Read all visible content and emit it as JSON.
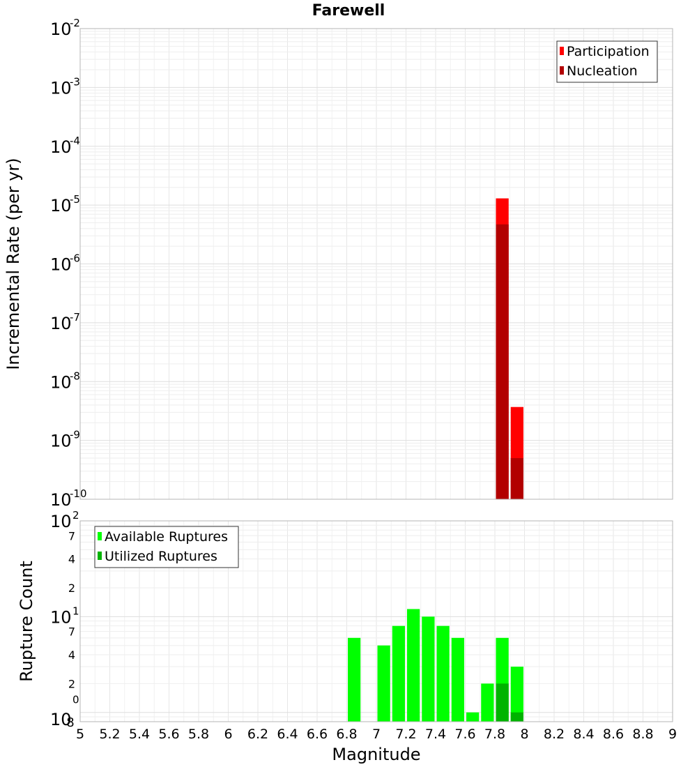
{
  "title": "Farewell",
  "chart_data": [
    {
      "type": "bar",
      "panel": "top",
      "ylabel": "Incremental Rate (per yr)",
      "y_scale": "log",
      "ylim": [
        1e-10,
        0.01
      ],
      "y_tick_exponents": [
        "-2",
        "-3",
        "-4",
        "-5",
        "-6",
        "-7",
        "-8",
        "-9",
        "-10"
      ],
      "y_tick_base": "10",
      "grid": true,
      "legend_position": "top-right",
      "series": [
        {
          "name": "Participation",
          "color": "#ff0000",
          "x": [
            7.85,
            7.95
          ],
          "values": [
            1.3e-05,
            3.7e-09
          ]
        },
        {
          "name": "Nucleation",
          "color": "#b20000",
          "x": [
            7.85,
            7.95
          ],
          "values": [
            4.7e-06,
            5e-10
          ]
        }
      ]
    },
    {
      "type": "bar",
      "panel": "bottom",
      "xlabel": "Magnitude",
      "ylabel": "Rupture Count",
      "y_scale": "log",
      "ylim": [
        0.8,
        100
      ],
      "grid": true,
      "legend_position": "top-left",
      "x_ticks": [
        "5",
        "5.2",
        "5.4",
        "5.6",
        "5.8",
        "6",
        "6.2",
        "6.4",
        "6.6",
        "6.8",
        "7",
        "7.2",
        "7.4",
        "7.6",
        "7.8",
        "8",
        "8.2",
        "8.4",
        "8.6",
        "8.8",
        "9"
      ],
      "xlim": [
        5,
        9
      ],
      "y_major_ticks": [
        {
          "value": 100,
          "base": "10",
          "exp": "2"
        },
        {
          "value": 10,
          "base": "10",
          "exp": "1"
        },
        {
          "value": 1,
          "base": "10",
          "exp": "0"
        }
      ],
      "y_minor_labels": [
        {
          "value": 70,
          "label": "7"
        },
        {
          "value": 40,
          "label": "4"
        },
        {
          "value": 20,
          "label": "2"
        },
        {
          "value": 7,
          "label": "7"
        },
        {
          "value": 4,
          "label": "4"
        },
        {
          "value": 2,
          "label": "2"
        },
        {
          "value": 0.8,
          "label": "8"
        }
      ],
      "series": [
        {
          "name": "Available Ruptures",
          "color": "#00ff00",
          "x": [
            6.85,
            7.05,
            7.15,
            7.25,
            7.35,
            7.45,
            7.55,
            7.65,
            7.75,
            7.85,
            7.95
          ],
          "values": [
            6,
            5,
            8,
            12,
            10,
            8,
            6,
            1,
            2,
            6,
            3
          ]
        },
        {
          "name": "Utilized Ruptures",
          "color": "#00b300",
          "x": [
            7.85,
            7.95
          ],
          "values": [
            2,
            1
          ]
        }
      ]
    }
  ]
}
